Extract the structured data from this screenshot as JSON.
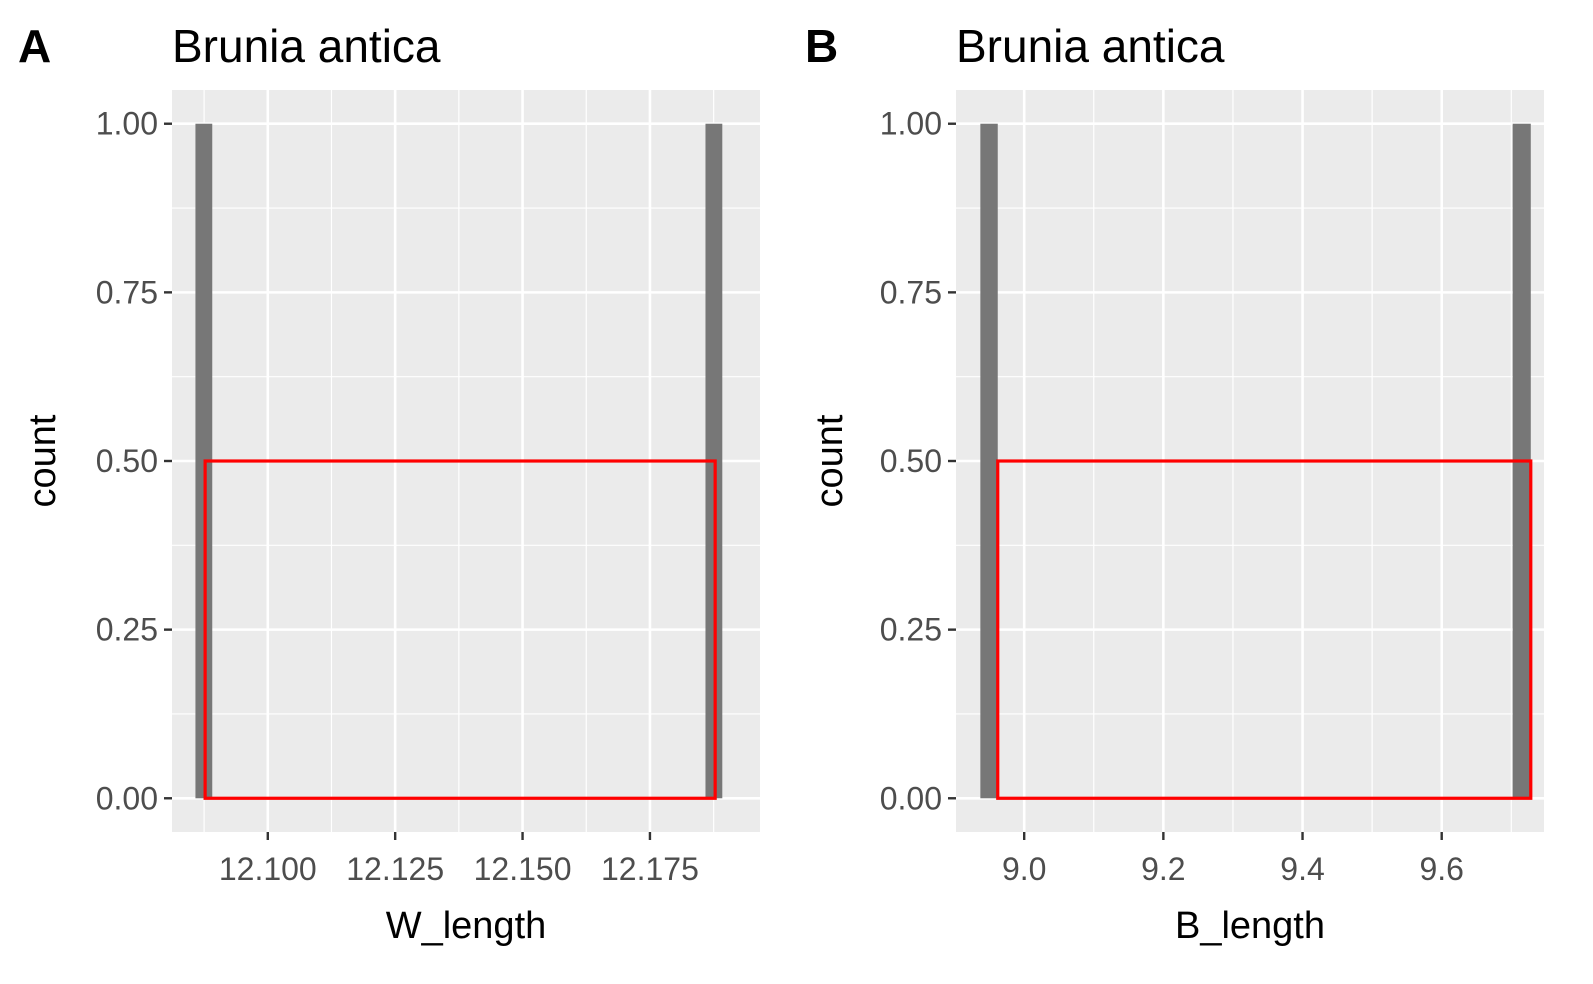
{
  "chart_data": [
    {
      "panel_label": "A",
      "type": "bar",
      "title": "Brunia antica",
      "xlabel": "W_length",
      "ylabel": "count",
      "xlim": [
        12.0812,
        12.1966
      ],
      "ylim": [
        -0.05,
        1.05
      ],
      "x_ticks": [
        12.1,
        12.125,
        12.15,
        12.175
      ],
      "x_tick_labels": [
        "12.100",
        "12.125",
        "12.150",
        "12.175"
      ],
      "y_ticks": [
        0,
        0.25,
        0.5,
        0.75,
        1.0
      ],
      "y_tick_labels": [
        "0.00",
        "0.25",
        "0.50",
        "0.75",
        "1.00"
      ],
      "bars": [
        {
          "x_start": 12.0858,
          "x_end": 12.0891,
          "count": 1
        },
        {
          "x_start": 12.1859,
          "x_end": 12.1892,
          "count": 1
        }
      ],
      "highlight_box": {
        "x_start": 12.0877,
        "x_end": 12.1878,
        "y_start": 0,
        "y_end": 0.5
      },
      "grid": true,
      "colors": {
        "panel_background": "#ebebeb",
        "grid": "#ffffff",
        "bar": "#777777",
        "highlight": "#ff0000"
      }
    },
    {
      "panel_label": "B",
      "type": "bar",
      "title": "Brunia antica",
      "xlabel": "B_length",
      "ylabel": "count",
      "xlim": [
        8.902,
        9.747
      ],
      "ylim": [
        -0.05,
        1.05
      ],
      "x_ticks": [
        9.0,
        9.2,
        9.4,
        9.6
      ],
      "x_tick_labels": [
        "9.0",
        "9.2",
        "9.4",
        "9.6"
      ],
      "y_ticks": [
        0,
        0.25,
        0.5,
        0.75,
        1.0
      ],
      "y_tick_labels": [
        "0.00",
        "0.25",
        "0.50",
        "0.75",
        "1.00"
      ],
      "bars": [
        {
          "x_start": 8.937,
          "x_end": 8.962,
          "count": 1
        },
        {
          "x_start": 9.702,
          "x_end": 9.728,
          "count": 1
        }
      ],
      "highlight_box": {
        "x_start": 8.962,
        "x_end": 9.728,
        "y_start": 0,
        "y_end": 0.5
      },
      "grid": true,
      "colors": {
        "panel_background": "#ebebeb",
        "grid": "#ffffff",
        "bar": "#777777",
        "highlight": "#ff0000"
      }
    }
  ]
}
